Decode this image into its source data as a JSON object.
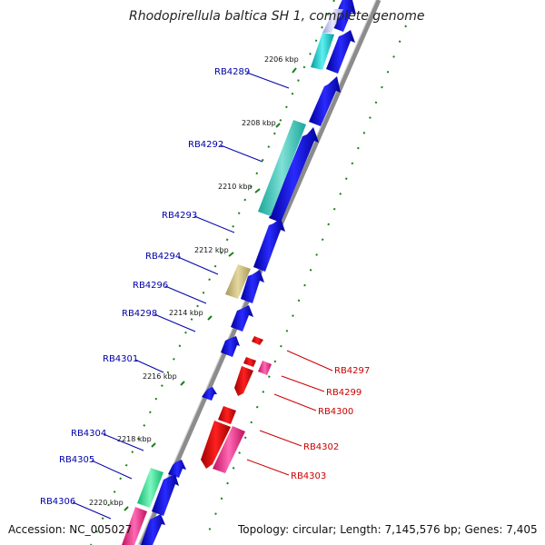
{
  "title": "Rhodopirellula baltica SH 1, complete genome",
  "footer": {
    "accession": "Accession: NC_005027",
    "info": "Topology: circular; Length: 7,145,576 bp; Genes: 7,405"
  },
  "colors": {
    "forward_label": "#0000aa",
    "reverse_label": "#cc0000",
    "ruler_ticks": "#1a7f1a",
    "backbone": "#8c8c8c"
  },
  "ruler": [
    "2206 kbp",
    "2208 kbp",
    "2210 kbp",
    "2212 kbp",
    "2214 kbp",
    "2216 kbp",
    "2218 kbp",
    "2220 kbp"
  ],
  "labels_forward": [
    "RB4289",
    "RB4292",
    "RB4293",
    "RB4294",
    "RB4296",
    "RB4298",
    "RB4301",
    "RB4304",
    "RB4305",
    "RB4306"
  ],
  "labels_reverse": [
    "RB4297",
    "RB4299",
    "RB4300",
    "RB4302",
    "RB4303"
  ]
}
